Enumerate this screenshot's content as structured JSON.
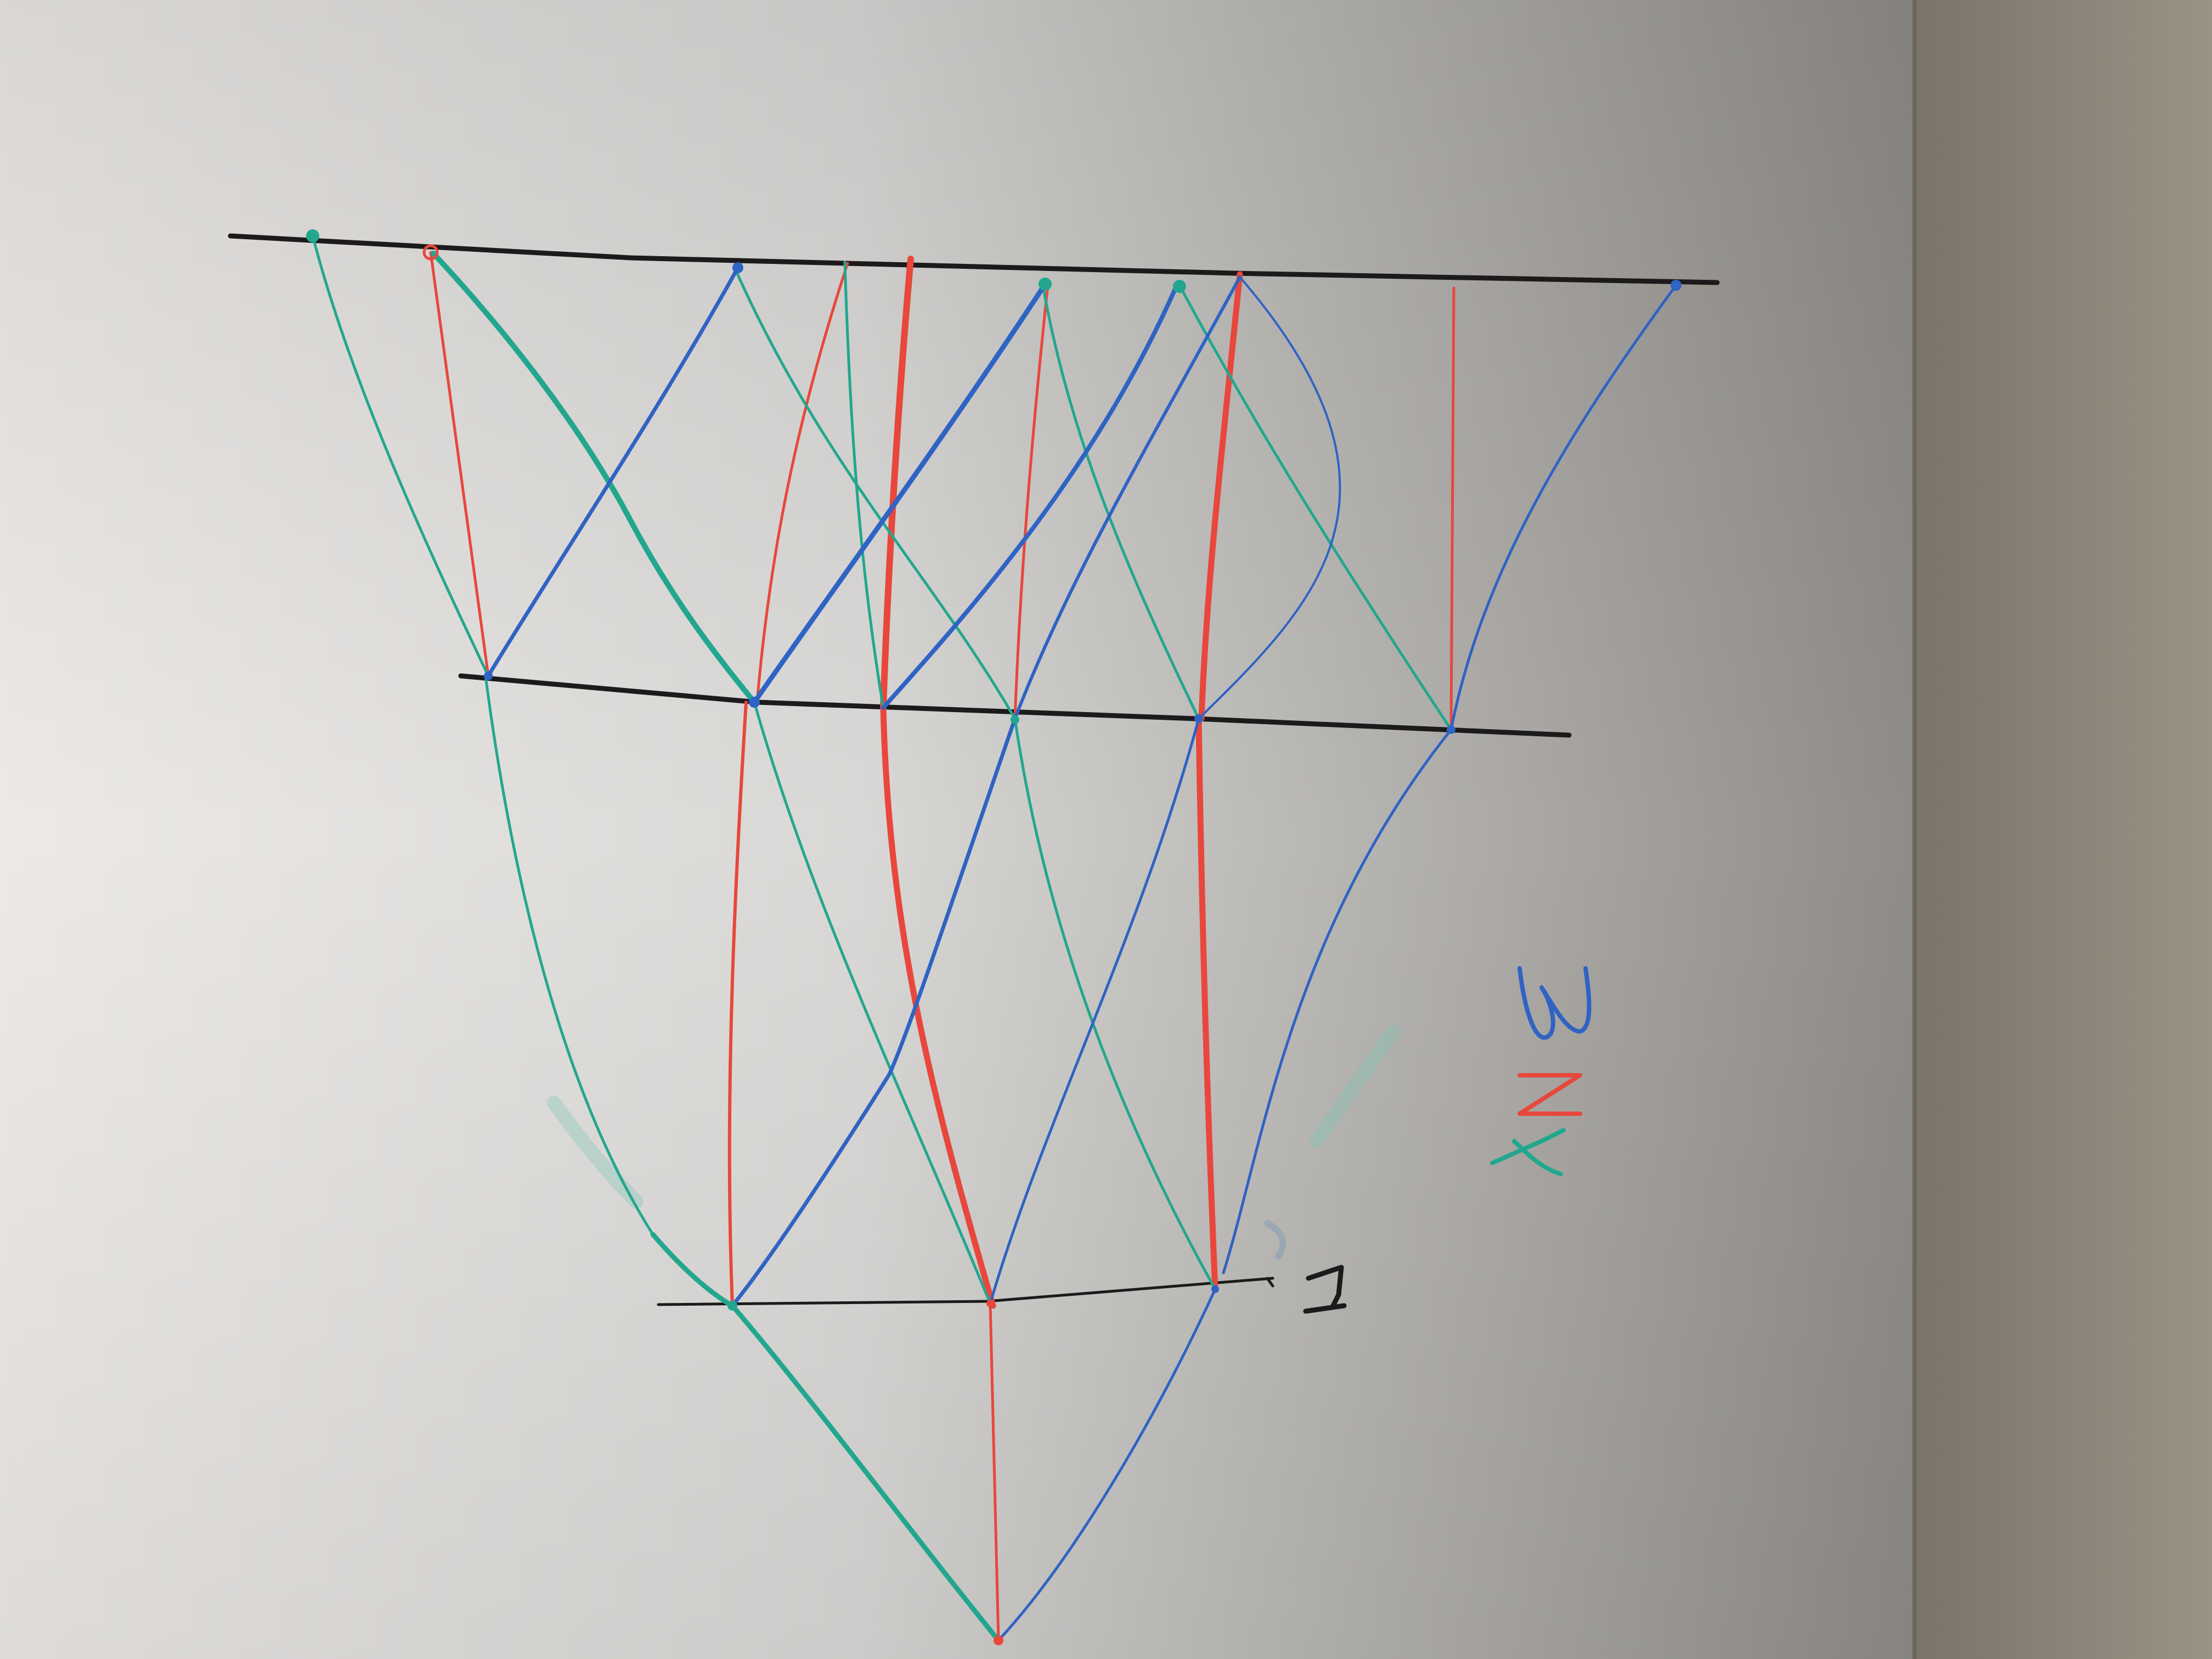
{
  "photo": {
    "subject": "whiteboard",
    "handwritten_text": [
      "Y",
      "N",
      "3",
      "I"
    ]
  },
  "colors": {
    "wall": "#8d857b",
    "board_light": "#e9e8e6",
    "board_shadow": "#8e8b86",
    "black_marker": "#1c1a1a",
    "red_marker": "#e8473c",
    "teal_marker": "#22a78e",
    "blue_marker": "#2f63c4"
  },
  "diagram": {
    "levels": 4,
    "nodes_per_level": [
      9,
      5,
      3,
      1
    ],
    "edge_colors": [
      "teal",
      "red",
      "blue"
    ]
  }
}
